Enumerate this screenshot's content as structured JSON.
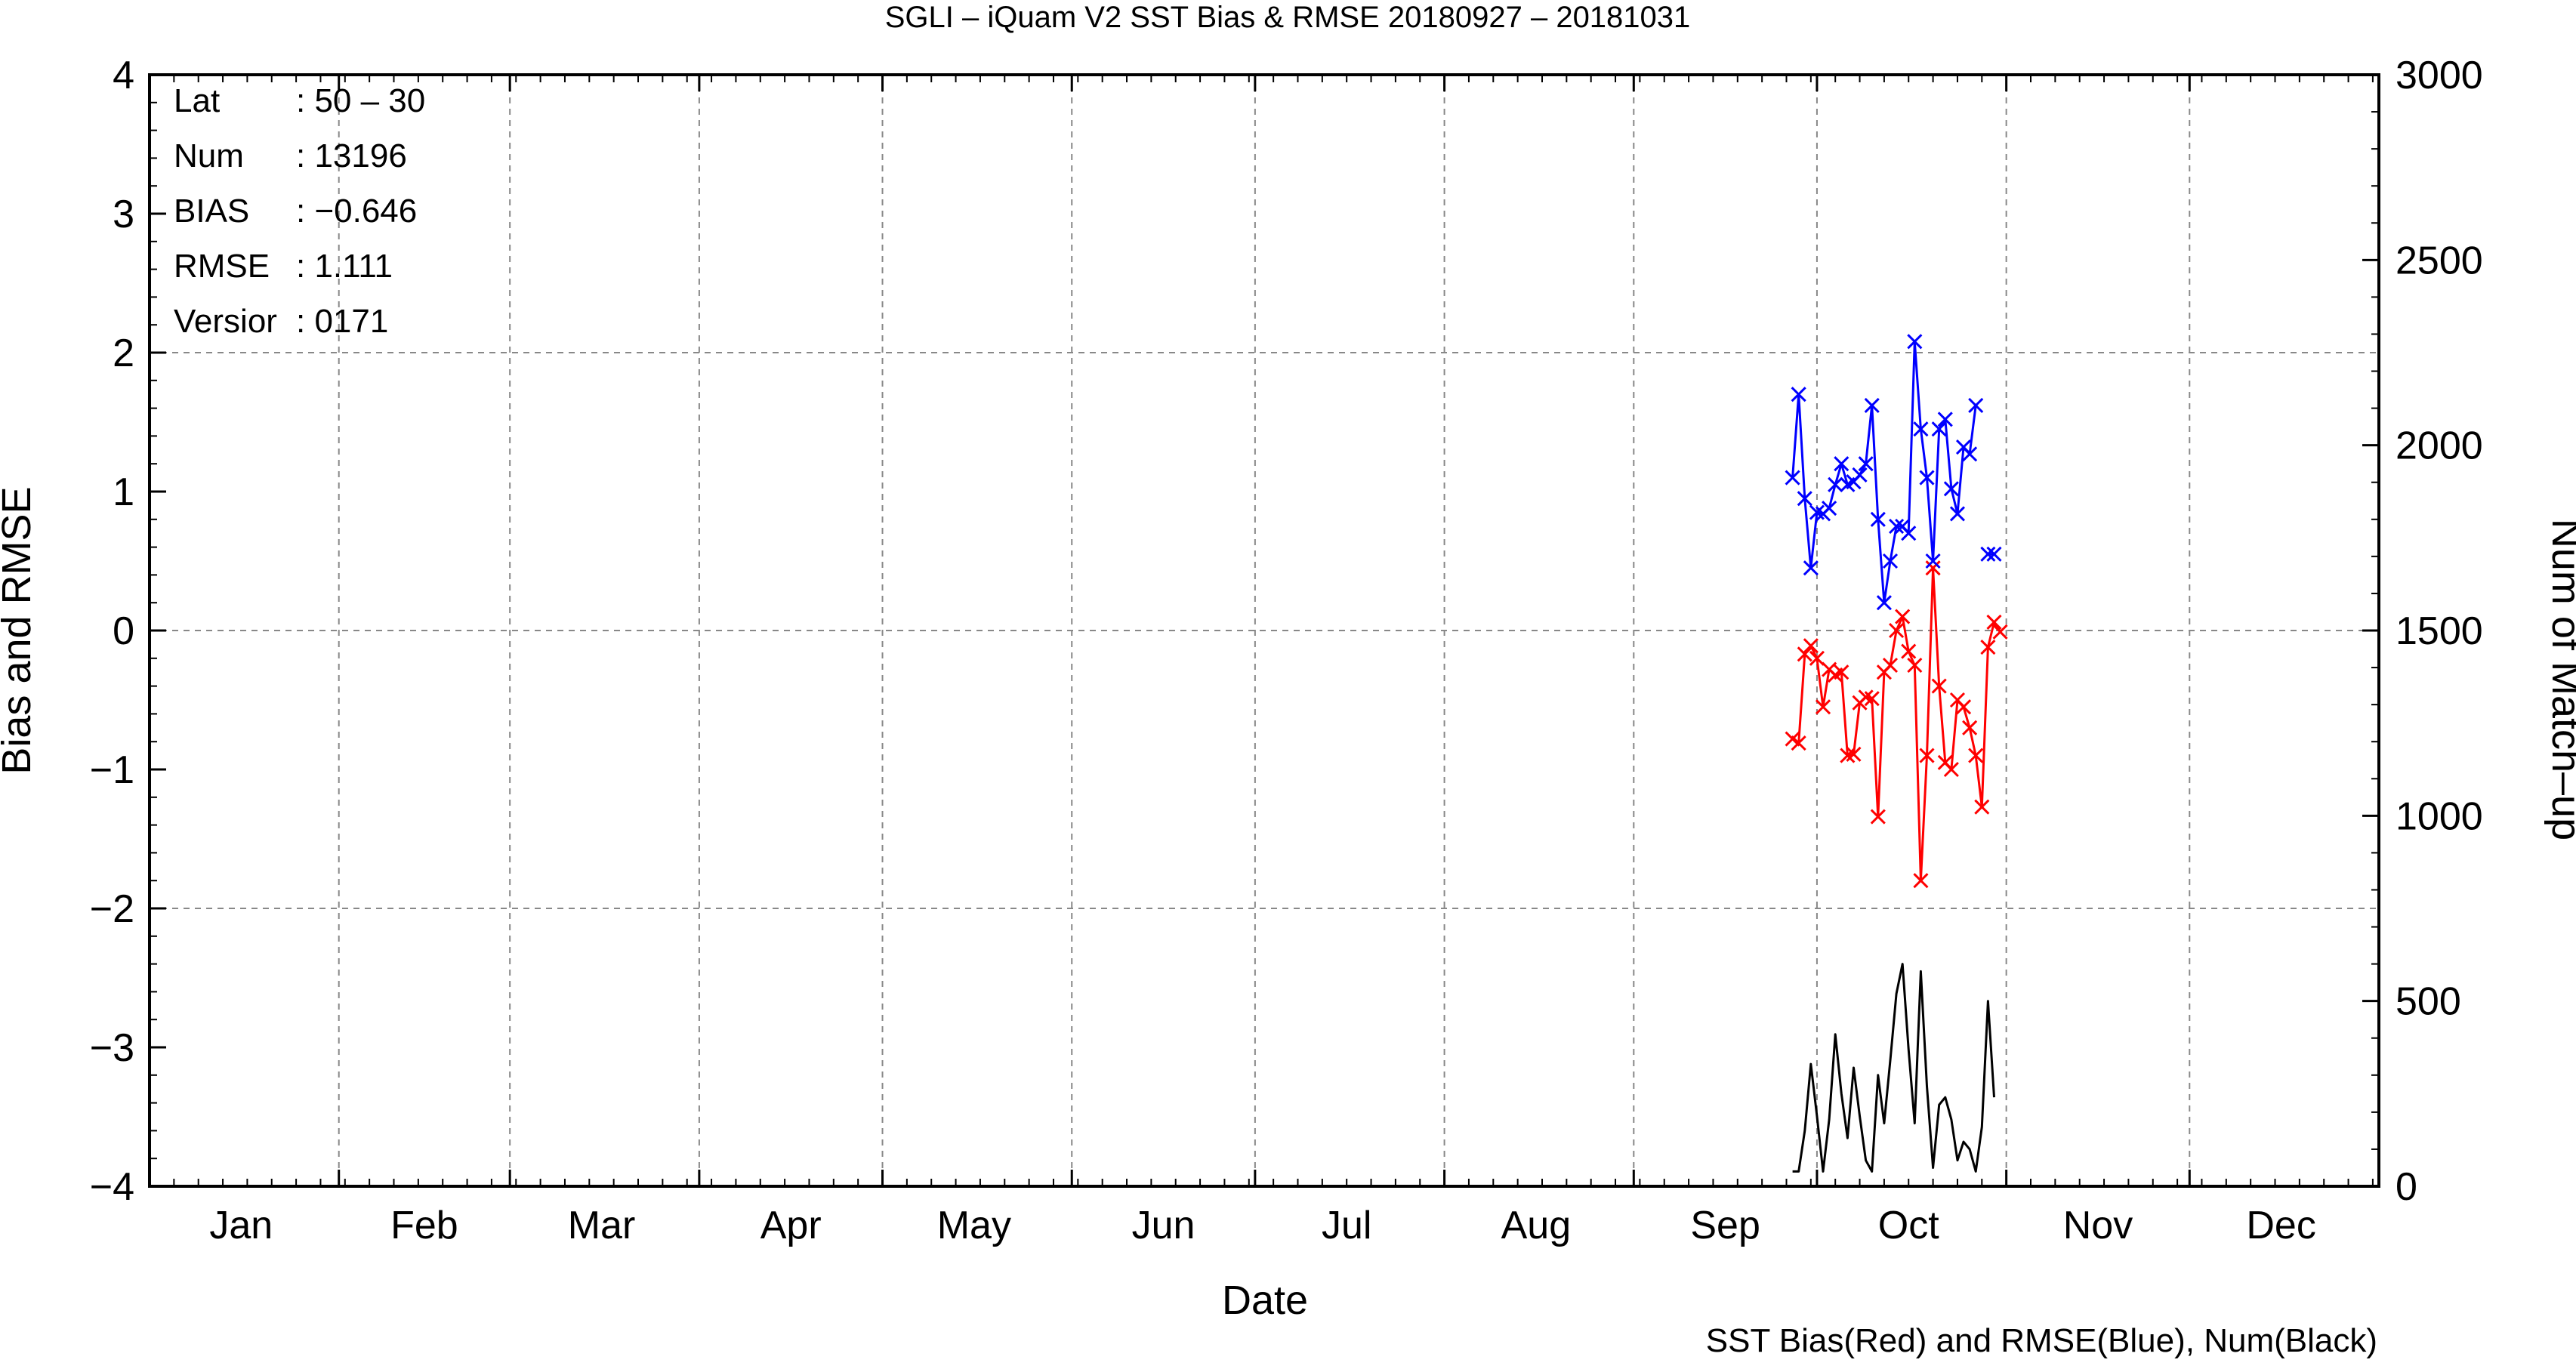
{
  "chart_data": {
    "type": "line",
    "title": "SGLI – iQuam V2 SST Bias & RMSE 20180927 – 20181031",
    "xlabel": "Date",
    "ylabel": "Bias and RMSE",
    "y2label": "Num of Match–up",
    "caption": "SST Bias(Red) and RMSE(Blue), Num(Black)",
    "x_range_day_of_year": [
      1,
      366
    ],
    "month_labels": [
      "Jan",
      "Feb",
      "Mar",
      "Apr",
      "May",
      "Jun",
      "Jul",
      "Aug",
      "Sep",
      "Oct",
      "Nov",
      "Dec"
    ],
    "month_label_days": [
      16,
      46,
      75,
      106,
      136,
      167,
      197,
      228,
      259,
      289,
      320,
      350
    ],
    "month_grid_days": [
      32,
      60,
      91,
      121,
      152,
      182,
      213,
      244,
      274,
      305,
      335
    ],
    "ylim": [
      -4,
      4
    ],
    "y_ticks": [
      "4",
      "3",
      "2",
      "1",
      "0",
      "−1",
      "−2",
      "−3",
      "−4"
    ],
    "y_tick_values": [
      4,
      3,
      2,
      1,
      0,
      -1,
      -2,
      -3,
      -4
    ],
    "y_grid_values": [
      2,
      0,
      -2
    ],
    "y2lim": [
      0,
      3000
    ],
    "y2_ticks": [
      "3000",
      "2500",
      "2000",
      "1500",
      "1000",
      "500",
      "0"
    ],
    "y2_tick_values": [
      3000,
      2500,
      2000,
      1500,
      1000,
      500,
      0
    ],
    "grid": true,
    "stats": [
      {
        "label": "Lat",
        "value": ": 50 – 30"
      },
      {
        "label": "Num",
        "value": ": 13196"
      },
      {
        "label": "BIAS",
        "value": ": −0.646"
      },
      {
        "label": "RMSE",
        "value": ": 1.111"
      },
      {
        "label": "Versior",
        "value": ": 0171"
      }
    ],
    "series": [
      {
        "color": "#ff0000",
        "axis": "left",
        "marker": "x",
        "x": [
          270,
          271,
          272,
          273,
          274,
          275,
          276,
          277,
          278,
          279,
          280,
          281,
          282,
          283,
          284,
          285,
          286,
          287,
          288,
          289,
          290,
          291,
          292,
          293,
          294,
          295,
          296,
          297,
          298,
          299,
          300,
          301,
          302,
          303,
          304
        ],
        "values": [
          -0.78,
          -0.81,
          -0.17,
          -0.11,
          -0.2,
          -0.55,
          -0.28,
          -0.32,
          -0.3,
          -0.9,
          -0.89,
          -0.52,
          -0.48,
          -0.49,
          -1.34,
          -0.3,
          -0.25,
          0.0,
          0.1,
          -0.15,
          -0.25,
          -1.8,
          -0.9,
          0.45,
          -0.4,
          -0.95,
          -1.0,
          -0.5,
          -0.55,
          -0.7,
          -0.9,
          -1.27,
          -0.12,
          0.06,
          -0.01
        ]
      },
      {
        "color": "#0000ff",
        "axis": "left",
        "marker": "x",
        "x": [
          270,
          271,
          272,
          273,
          274,
          275,
          276,
          277,
          278,
          279,
          280,
          281,
          282,
          283,
          284,
          285,
          286,
          287,
          288,
          289,
          290,
          291,
          292,
          293,
          294,
          295,
          296,
          297,
          298,
          299,
          300,
          301,
          302,
          303,
          304
        ],
        "values": [
          1.1,
          1.7,
          0.95,
          0.45,
          0.85,
          0.84,
          0.88,
          1.05,
          1.2,
          1.05,
          1.07,
          1.12,
          1.2,
          1.62,
          0.8,
          0.2,
          0.5,
          0.75,
          0.75,
          0.7,
          2.08,
          1.45,
          1.1,
          0.5,
          1.45,
          1.52,
          1.02,
          0.84,
          1.32,
          1.27,
          1.62,
          null,
          0.55,
          0.55,
          null
        ]
      },
      {
        "color": "#000000",
        "axis": "right",
        "marker": "none",
        "x": [
          270,
          271,
          272,
          273,
          274,
          275,
          276,
          277,
          278,
          279,
          280,
          281,
          282,
          283,
          284,
          285,
          286,
          287,
          288,
          289,
          290,
          291,
          292,
          293,
          294,
          295,
          296,
          297,
          298,
          299,
          300,
          301,
          302,
          303,
          304
        ],
        "values": [
          40,
          40,
          150,
          330,
          190,
          40,
          180,
          410,
          250,
          130,
          320,
          190,
          70,
          40,
          300,
          170,
          340,
          520,
          600,
          370,
          170,
          580,
          270,
          50,
          220,
          240,
          180,
          70,
          120,
          100,
          40,
          160,
          500,
          240,
          null
        ]
      }
    ]
  }
}
